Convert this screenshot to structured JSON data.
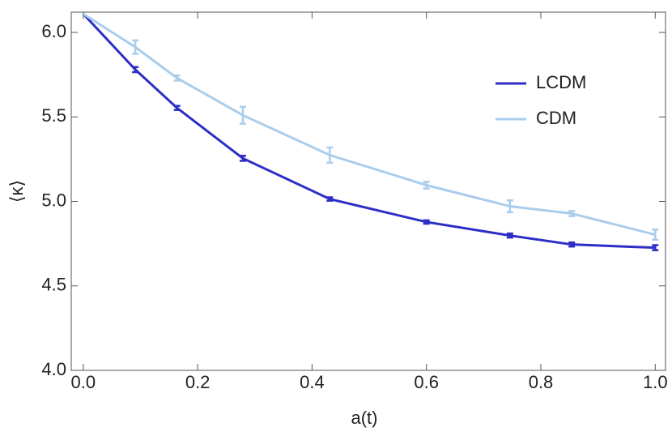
{
  "chart_data": {
    "type": "line",
    "x_label": "a(t)",
    "y_label": "⟨κ⟩",
    "x": [
      0,
      0.091,
      0.164,
      0.279,
      0.431,
      0.6,
      0.746,
      0.854,
      1.0
    ],
    "series": [
      {
        "name": "LCDM",
        "color": "#2e2ec6",
        "values": [
          6.11,
          5.78,
          5.553,
          5.255,
          5.014,
          4.878,
          4.798,
          4.745,
          4.726
        ],
        "errors": [
          null,
          0.015,
          0.012,
          0.015,
          0.01,
          0.01,
          0.012,
          0.012,
          0.015
        ]
      },
      {
        "name": "CDM",
        "color": "#a9cdec",
        "values": [
          6.11,
          5.913,
          5.73,
          5.51,
          5.274,
          5.096,
          4.971,
          4.928,
          4.803
        ],
        "errors": [
          null,
          0.04,
          0.015,
          0.05,
          0.045,
          0.02,
          0.035,
          0.015,
          0.03
        ]
      }
    ],
    "xlim": [
      -0.021,
      1.018
    ],
    "ylim": [
      4.0,
      6.12
    ],
    "xticks": [
      {
        "value": 0,
        "label": "0.0"
      },
      0.2,
      0.4,
      0.6,
      0.8,
      {
        "value": 1,
        "label": "1.0"
      }
    ],
    "yticks": [
      {
        "value": 4,
        "label": "4.0"
      },
      4.5,
      {
        "value": 5,
        "label": "5.0"
      },
      5.5,
      {
        "value": 6,
        "label": "6.0"
      }
    ],
    "legend": "upper-right"
  }
}
